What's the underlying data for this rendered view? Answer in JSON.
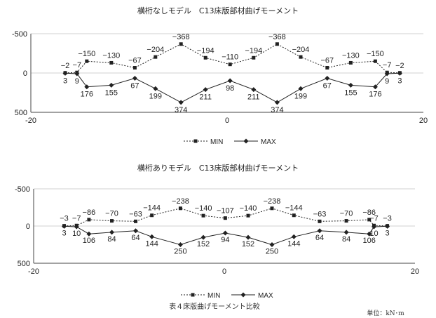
{
  "caption": "表４床版曲げモーメント比較",
  "unit_label": "単位：kN･m",
  "colors": {
    "line": "#222222",
    "grid": "#d0d0d0"
  },
  "chart_data": [
    {
      "type": "line",
      "title": "横桁なしモデル　C13床版部材曲げモーメント",
      "xlim": [
        -20,
        20
      ],
      "ylim": [
        -500,
        500
      ],
      "y_inverted": true,
      "grid": "horizontal",
      "legend_position": "bottom-center",
      "x_ticks": [
        "-20",
        "0",
        "20"
      ],
      "y_ticks": [
        "-500",
        "0",
        "500"
      ],
      "x": [
        -16.5,
        -15.3,
        -14.3,
        -11.8,
        -9.4,
        -7.3,
        -4.7,
        -2.2,
        0.3,
        2.7,
        5.1,
        7.5,
        10.2,
        12.6,
        15.1,
        16.3,
        17.6
      ],
      "series": [
        {
          "name": "MIN",
          "style": "dotted-square",
          "values": [
            -2,
            -7,
            -150,
            -130,
            -67,
            -204,
            -368,
            -194,
            -110,
            -194,
            -368,
            -204,
            -67,
            -130,
            -150,
            -7,
            -2
          ],
          "labels": [
            "−2",
            "−7",
            "−150",
            "−130",
            "−67",
            "−204",
            "−368",
            "−194",
            "−110",
            "−194",
            "−368",
            "−204",
            "−67",
            "−130",
            "−150",
            "−7",
            "−2"
          ]
        },
        {
          "name": "MAX",
          "style": "solid-diamond",
          "values": [
            3,
            9,
            176,
            155,
            67,
            199,
            374,
            211,
            98,
            211,
            374,
            199,
            67,
            155,
            176,
            9,
            3
          ],
          "labels": [
            "3",
            "9",
            "176",
            "155",
            "67",
            "199",
            "374",
            "211",
            "98",
            "211",
            "374",
            "199",
            "67",
            "155",
            "176",
            "9",
            "3"
          ]
        }
      ]
    },
    {
      "type": "line",
      "title": "横桁ありモデル　C13床版部材曲げモーメント",
      "xlim": [
        -20,
        20
      ],
      "ylim": [
        -500,
        500
      ],
      "y_inverted": true,
      "grid": "horizontal",
      "legend_position": "bottom-center",
      "x_ticks": [
        "-20",
        "0",
        "20"
      ],
      "y_ticks": [
        "-500",
        "0",
        "500"
      ],
      "x": [
        -16.8,
        -15.5,
        -14.2,
        -11.8,
        -9.3,
        -7.6,
        -4.6,
        -2.2,
        0.1,
        2.5,
        5.0,
        7.3,
        10.0,
        12.8,
        15.2,
        15.7,
        17.1
      ],
      "series": [
        {
          "name": "MIN",
          "style": "dotted-square",
          "values": [
            -3,
            -7,
            -86,
            -70,
            -63,
            -144,
            -238,
            -140,
            -107,
            -140,
            -238,
            -144,
            -63,
            -70,
            -86,
            -7,
            -3
          ],
          "labels": [
            "−3",
            "−7",
            "−86",
            "−70",
            "−63",
            "−144",
            "−238",
            "−140",
            "−107",
            "−140",
            "−238",
            "−144",
            "−63",
            "−70",
            "−86",
            "−7",
            "−3"
          ]
        },
        {
          "name": "MAX",
          "style": "solid-diamond",
          "values": [
            3,
            10,
            106,
            84,
            64,
            144,
            250,
            152,
            94,
            152,
            250,
            144,
            64,
            84,
            106,
            10,
            3
          ],
          "labels": [
            "3",
            "10",
            "106",
            "84",
            "64",
            "144",
            "250",
            "152",
            "94",
            "152",
            "250",
            "144",
            "64",
            "84",
            "106",
            "10",
            "3"
          ]
        }
      ]
    }
  ]
}
